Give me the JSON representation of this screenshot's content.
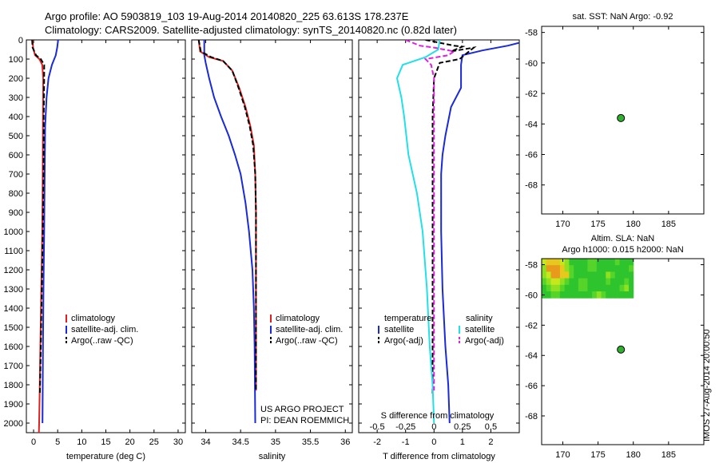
{
  "header": {
    "title_line1": "Argo profile: AO 5903819_103 19-Aug-2014 20140820_225 63.613S 178.237E",
    "title_line2": "Climatology: CARS2009. Satellite-adjusted climatology: synTS_20140820.nc (0.82d later)"
  },
  "colors": {
    "climatology": "#e02020",
    "satellite": "#1a2ad8",
    "argo": "#000000",
    "sat_diff_s": "#22e0e8",
    "argo_diff_s": "#e020e0",
    "marker": "#2fb12f"
  },
  "chart_data": [
    {
      "id": "temperature",
      "type": "line",
      "xlabel": "temperature (deg C)",
      "ylabel": "",
      "xlim": [
        -1.5,
        31.5
      ],
      "ylim": [
        2050,
        0
      ],
      "xticks": [
        0,
        5,
        10,
        15,
        20,
        25,
        30
      ],
      "yticks": [
        0,
        100,
        200,
        300,
        400,
        500,
        600,
        700,
        800,
        900,
        1000,
        1100,
        1200,
        1300,
        1400,
        1500,
        1600,
        1700,
        1800,
        1900,
        2000
      ],
      "legend": {
        "placement": "lower-center",
        "entries": [
          "climatology",
          "satellite-adj. clim.",
          "Argo(..raw -QC)"
        ]
      },
      "series": [
        {
          "name": "climatology",
          "style": "solid",
          "color": "#e02020",
          "points": [
            [
              -0.2,
              0
            ],
            [
              -0.1,
              40
            ],
            [
              0.3,
              80
            ],
            [
              1.2,
              100
            ],
            [
              1.8,
              130
            ],
            [
              2.0,
              200
            ],
            [
              1.95,
              400
            ],
            [
              1.9,
              700
            ],
            [
              1.8,
              1000
            ],
            [
              1.6,
              1300
            ],
            [
              1.4,
              1600
            ],
            [
              1.25,
              1850
            ],
            [
              1.15,
              2000
            ],
            [
              1.1,
              2050
            ]
          ]
        },
        {
          "name": "satellite-adj. clim.",
          "style": "solid",
          "color": "#1a2ad8",
          "points": [
            [
              5.1,
              0
            ],
            [
              4.9,
              40
            ],
            [
              4.6,
              80
            ],
            [
              3.8,
              130
            ],
            [
              3.1,
              200
            ],
            [
              2.7,
              300
            ],
            [
              2.4,
              450
            ],
            [
              2.3,
              700
            ],
            [
              2.2,
              1000
            ],
            [
              2.05,
              1300
            ],
            [
              1.95,
              1600
            ],
            [
              1.9,
              1800
            ],
            [
              1.85,
              2000
            ]
          ]
        },
        {
          "name": "Argo(..raw -QC)",
          "style": "dashed",
          "color": "#000000",
          "points": [
            [
              -0.3,
              0
            ],
            [
              -0.2,
              40
            ],
            [
              0.5,
              80
            ],
            [
              1.5,
              100
            ],
            [
              2.2,
              130
            ],
            [
              2.2,
              200
            ],
            [
              2.1,
              400
            ],
            [
              2.05,
              700
            ],
            [
              1.9,
              1000
            ],
            [
              1.7,
              1300
            ],
            [
              1.5,
              1600
            ],
            [
              1.3,
              1850
            ],
            [
              1.25,
              1850
            ]
          ]
        }
      ]
    },
    {
      "id": "salinity",
      "type": "line",
      "xlabel": "salinity",
      "ylabel": "",
      "xlim": [
        33.8,
        36.1
      ],
      "ylim": [
        2050,
        0
      ],
      "xticks": [
        34,
        34.5,
        35,
        35.5,
        36
      ],
      "xtick_labels": [
        "34",
        "34.5",
        "35",
        "35.5",
        "36"
      ],
      "legend": {
        "placement": "lower-center",
        "entries": [
          "climatology",
          "satellite-adj. clim.",
          "Argo(..raw -QC)"
        ]
      },
      "series": [
        {
          "name": "climatology",
          "style": "solid",
          "color": "#e02020",
          "points": [
            [
              33.9,
              0
            ],
            [
              33.92,
              60
            ],
            [
              34.05,
              90
            ],
            [
              34.25,
              110
            ],
            [
              34.38,
              160
            ],
            [
              34.48,
              250
            ],
            [
              34.57,
              350
            ],
            [
              34.64,
              450
            ],
            [
              34.69,
              550
            ],
            [
              34.71,
              700
            ],
            [
              34.72,
              900
            ],
            [
              34.72,
              1200
            ],
            [
              34.72,
              1500
            ],
            [
              34.72,
              1830
            ]
          ]
        },
        {
          "name": "satellite-adj. clim.",
          "style": "solid",
          "color": "#1a2ad8",
          "points": [
            [
              33.98,
              0
            ],
            [
              33.98,
              80
            ],
            [
              34.0,
              120
            ],
            [
              34.05,
              200
            ],
            [
              34.12,
              300
            ],
            [
              34.22,
              400
            ],
            [
              34.33,
              500
            ],
            [
              34.42,
              600
            ],
            [
              34.5,
              700
            ],
            [
              34.57,
              850
            ],
            [
              34.62,
              1000
            ],
            [
              34.67,
              1200
            ],
            [
              34.69,
              1400
            ],
            [
              34.7,
              1600
            ],
            [
              34.71,
              2000
            ]
          ]
        },
        {
          "name": "Argo(..raw -QC)",
          "style": "dashed",
          "color": "#000000",
          "points": [
            [
              33.9,
              0
            ],
            [
              33.93,
              60
            ],
            [
              34.08,
              90
            ],
            [
              34.25,
              110
            ],
            [
              34.38,
              160
            ],
            [
              34.47,
              250
            ],
            [
              34.56,
              350
            ],
            [
              34.63,
              450
            ],
            [
              34.68,
              550
            ],
            [
              34.71,
              700
            ],
            [
              34.72,
              900
            ],
            [
              34.72,
              1200
            ],
            [
              34.72,
              1500
            ],
            [
              34.72,
              1830
            ]
          ]
        }
      ],
      "annotations": [
        "US ARGO PROJECT",
        "PI: DEAN ROEMMICH"
      ]
    },
    {
      "id": "differences",
      "type": "line",
      "xlabel": "T difference from climatology",
      "xlabel_top": "S difference from climatology",
      "ylabel": "",
      "xlim": [
        -2.65,
        3.0
      ],
      "ylim": [
        2050,
        0
      ],
      "xticks": [
        -2,
        -1,
        0,
        1,
        2
      ],
      "xticks_top": [
        "-0.5",
        "-0.25",
        "0",
        "0.25",
        "0.5"
      ],
      "legend": {
        "placement": "lower-center",
        "temperature_title": "temperature",
        "salinity_title": "salinity",
        "temperature_entries": [
          "satellite",
          "Argo(-adj)"
        ],
        "salinity_entries": [
          "satellite",
          "Argo(-adj)"
        ]
      },
      "series": [
        {
          "name": "satellite",
          "group": "temperature",
          "style": "solid",
          "color": "#1a2ad8",
          "points": [
            [
              3.0,
              15
            ],
            [
              2.6,
              30
            ],
            [
              1.7,
              55
            ],
            [
              1.0,
              80
            ],
            [
              0.95,
              130
            ],
            [
              0.95,
              250
            ],
            [
              0.6,
              350
            ],
            [
              0.4,
              500
            ],
            [
              0.3,
              600
            ],
            [
              0.25,
              700
            ],
            [
              0.25,
              1000
            ],
            [
              0.3,
              1300
            ],
            [
              0.4,
              1600
            ],
            [
              0.5,
              1800
            ],
            [
              0.55,
              2000
            ]
          ]
        },
        {
          "name": "Argo(-adj)",
          "group": "temperature",
          "style": "dashed",
          "color": "#000000",
          "points": [
            [
              -0.3,
              0
            ],
            [
              0.2,
              15
            ],
            [
              0.7,
              30
            ],
            [
              1.0,
              35
            ],
            [
              0.6,
              60
            ],
            [
              1.4,
              40
            ],
            [
              0.9,
              100
            ],
            [
              0.2,
              120
            ],
            [
              0.0,
              200
            ],
            [
              -0.05,
              400
            ],
            [
              -0.05,
              700
            ],
            [
              -0.05,
              1000
            ],
            [
              -0.05,
              1300
            ],
            [
              -0.05,
              1600
            ],
            [
              -0.05,
              1850
            ]
          ]
        },
        {
          "name": "satellite",
          "group": "salinity",
          "style": "solid",
          "color": "#22e0e8",
          "points": [
            [
              0.2,
              0
            ],
            [
              0.15,
              50
            ],
            [
              -0.3,
              90
            ],
            [
              -1.1,
              130
            ],
            [
              -1.3,
              200
            ],
            [
              -1.15,
              300
            ],
            [
              -1.05,
              400
            ],
            [
              -0.9,
              600
            ],
            [
              -0.6,
              800
            ],
            [
              -0.4,
              1000
            ],
            [
              -0.25,
              1300
            ],
            [
              -0.15,
              1600
            ],
            [
              -0.05,
              1800
            ],
            [
              0.0,
              2000
            ]
          ]
        },
        {
          "name": "Argo(-adj)",
          "group": "salinity",
          "style": "dashed",
          "color": "#e020e0",
          "points": [
            [
              -1.0,
              0
            ],
            [
              -0.5,
              30
            ],
            [
              0.0,
              40
            ],
            [
              0.7,
              60
            ],
            [
              0.5,
              80
            ],
            [
              -0.3,
              100
            ],
            [
              -0.1,
              130
            ],
            [
              0.0,
              200
            ],
            [
              0.0,
              400
            ],
            [
              0.0,
              800
            ],
            [
              0.0,
              1200
            ],
            [
              0.0,
              1500
            ],
            [
              0.0,
              1830
            ]
          ]
        }
      ]
    },
    {
      "id": "sst_map",
      "type": "scatter",
      "title": "sat. SST: NaN Argo: -0.92",
      "xlim": [
        167,
        190
      ],
      "ylim": [
        -69.9,
        -57.6
      ],
      "xticks": [
        170,
        175,
        180,
        185
      ],
      "yticks": [
        -58,
        -60,
        -62,
        -64,
        -66,
        -68
      ],
      "points": [
        {
          "x": 178.237,
          "y": -63.613
        }
      ]
    },
    {
      "id": "sla_map",
      "type": "heatmap",
      "title_line1": "Altim. SLA: NaN",
      "title_line2": "Argo h1000: 0.015 h2000: NaN",
      "xlim": [
        167,
        190
      ],
      "ylim": [
        -69.9,
        -57.6
      ],
      "xticks": [
        170,
        175,
        180,
        185
      ],
      "yticks": [
        -58,
        -60,
        -62,
        -64,
        -66,
        -68
      ],
      "heatmap_extent": {
        "x": [
          167,
          180
        ],
        "y": [
          -60.2,
          -57.6
        ]
      },
      "points": [
        {
          "x": 178.237,
          "y": -63.613
        }
      ]
    }
  ],
  "credit": "IMOS 27-Aug-2014 20:00:50"
}
